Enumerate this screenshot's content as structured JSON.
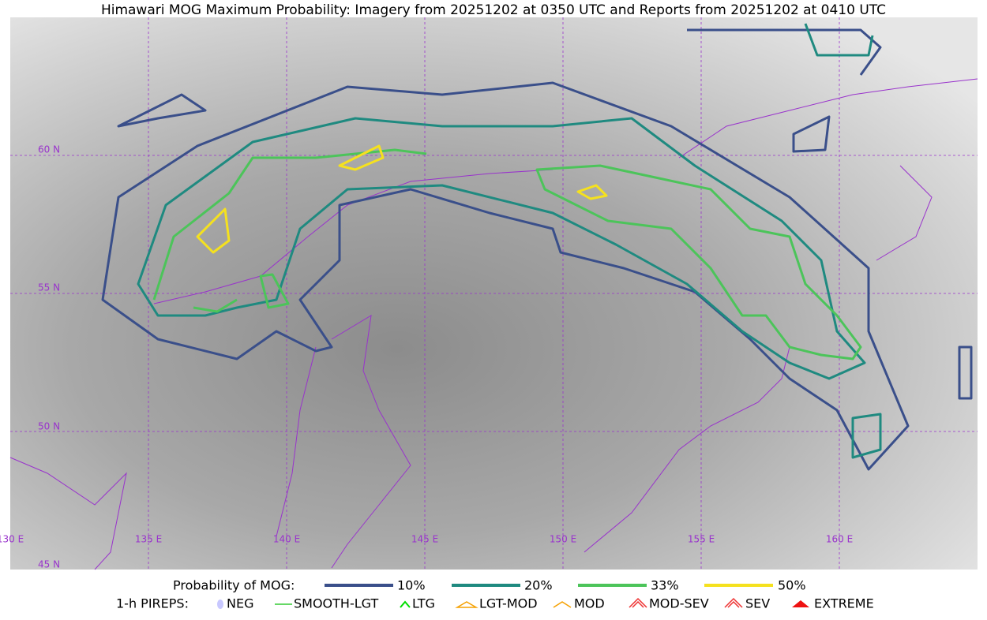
{
  "title": "Himawari MOG Maximum Probability: Imagery from 20251202 at 0350 UTC and Reports from 20251202 at 0410 UTC",
  "lat_labels": [
    "60 N",
    "55 N",
    "50 N",
    "45 N"
  ],
  "lon_labels": [
    "130 E",
    "135 E",
    "140 E",
    "145 E",
    "150 E",
    "155 E",
    "160 E"
  ],
  "legend": {
    "title": "Probability of MOG:",
    "items": [
      "10%",
      "20%",
      "33%",
      "50%"
    ]
  },
  "pireps": {
    "title": "1-h PIREPS:",
    "items": [
      "NEG",
      "SMOOTH-LGT",
      "LTG",
      "LGT-MOD",
      "MOD",
      "MOD-SEV",
      "SEV",
      "EXTREME"
    ]
  }
}
